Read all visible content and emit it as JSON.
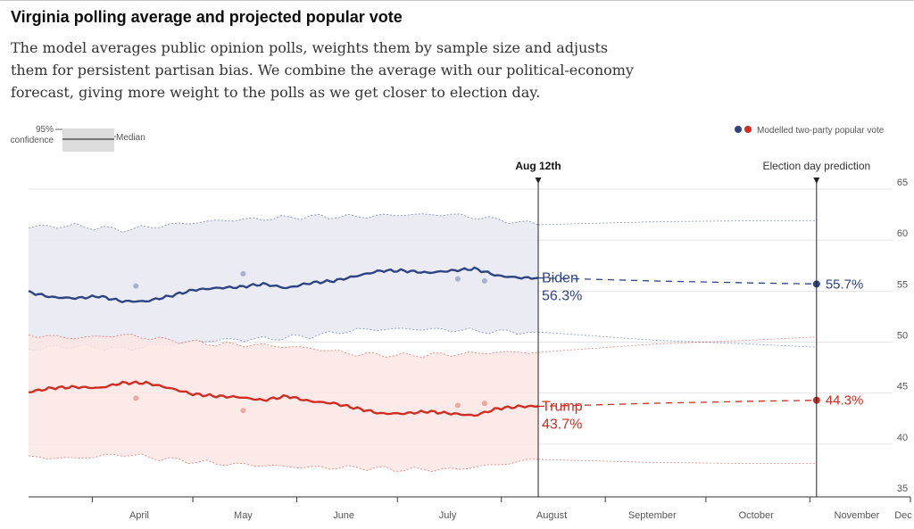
{
  "header": {
    "title": "Virginia polling average and projected popular vote",
    "subtitle": "The model averages public opinion polls, weights them by sample size and adjusts them for persistent partisan bias. We combine the average with our political-economy forecast, giving more weight to the polls as we get closer to election day."
  },
  "legend": {
    "confidence_label_1": "95%",
    "confidence_label_2": "confidence",
    "median_label": "Median",
    "modelled_label": "Modelled two-party popular vote"
  },
  "annotations": {
    "today_label": "Aug 12th",
    "election_label": "Election day prediction"
  },
  "colors": {
    "biden": "#2e4482",
    "trump": "#d02c21",
    "biden_band": "#e9eaf2",
    "trump_band": "#fbe6e4"
  },
  "chart_data": {
    "type": "line",
    "title": "Virginia polling average and projected popular vote",
    "xlabel": "",
    "ylabel": "",
    "ylim": [
      35,
      65
    ],
    "y_ticks": [
      "65",
      "60",
      "55",
      "50",
      "45",
      "40",
      "35"
    ],
    "x_ticks": [
      "April",
      "May",
      "June",
      "July",
      "August",
      "September",
      "October",
      "November",
      "Dec"
    ],
    "x_range": [
      "2020-03-13",
      "2020-12-01"
    ],
    "today": "2020-08-12",
    "election_day": "2020-11-03",
    "grid": true,
    "legend_position": "top-right",
    "series": [
      {
        "name": "Biden",
        "label": "Biden",
        "final_label": "56.3%",
        "election_value_label": "55.7%",
        "election_value": 55.7,
        "median": [
          [
            "2020-03-13",
            54.9
          ],
          [
            "2020-03-20",
            54.4
          ],
          [
            "2020-03-27",
            54.3
          ],
          [
            "2020-04-03",
            54.5
          ],
          [
            "2020-04-10",
            54.0
          ],
          [
            "2020-04-17",
            54.0
          ],
          [
            "2020-04-24",
            54.5
          ],
          [
            "2020-05-01",
            55.1
          ],
          [
            "2020-05-08",
            55.3
          ],
          [
            "2020-05-15",
            55.4
          ],
          [
            "2020-05-22",
            55.7
          ],
          [
            "2020-05-29",
            55.3
          ],
          [
            "2020-06-05",
            55.8
          ],
          [
            "2020-06-12",
            56.0
          ],
          [
            "2020-06-19",
            56.5
          ],
          [
            "2020-06-26",
            57.0
          ],
          [
            "2020-07-03",
            57.0
          ],
          [
            "2020-07-10",
            56.8
          ],
          [
            "2020-07-17",
            57.0
          ],
          [
            "2020-07-24",
            57.2
          ],
          [
            "2020-07-31",
            56.5
          ],
          [
            "2020-08-07",
            56.3
          ],
          [
            "2020-08-12",
            56.3
          ]
        ],
        "upper": [
          [
            "2020-03-13",
            61.3
          ],
          [
            "2020-03-27",
            61.4
          ],
          [
            "2020-04-10",
            61.0
          ],
          [
            "2020-04-24",
            61.5
          ],
          [
            "2020-05-08",
            61.9
          ],
          [
            "2020-05-22",
            62.1
          ],
          [
            "2020-06-05",
            62.3
          ],
          [
            "2020-06-19",
            62.3
          ],
          [
            "2020-07-03",
            62.5
          ],
          [
            "2020-07-17",
            62.5
          ],
          [
            "2020-07-31",
            62.0
          ],
          [
            "2020-08-12",
            61.5
          ]
        ],
        "lower": [
          [
            "2020-03-13",
            49.3
          ],
          [
            "2020-03-27",
            49.6
          ],
          [
            "2020-04-10",
            49.3
          ],
          [
            "2020-04-24",
            49.8
          ],
          [
            "2020-05-08",
            50.2
          ],
          [
            "2020-05-22",
            50.3
          ],
          [
            "2020-06-05",
            50.6
          ],
          [
            "2020-06-19",
            51.2
          ],
          [
            "2020-07-03",
            51.3
          ],
          [
            "2020-07-17",
            51.2
          ],
          [
            "2020-07-31",
            51.0
          ],
          [
            "2020-08-12",
            51.0
          ]
        ],
        "projection": [
          [
            "2020-08-12",
            56.3
          ],
          [
            "2020-09-15",
            56.0
          ],
          [
            "2020-10-15",
            55.8
          ],
          [
            "2020-11-03",
            55.7
          ]
        ],
        "proj_upper": [
          [
            "2020-08-12",
            61.5
          ],
          [
            "2020-09-15",
            61.8
          ],
          [
            "2020-10-15",
            61.9
          ],
          [
            "2020-11-03",
            61.9
          ]
        ],
        "proj_lower": [
          [
            "2020-08-12",
            51.0
          ],
          [
            "2020-09-15",
            50.2
          ],
          [
            "2020-10-15",
            49.8
          ],
          [
            "2020-11-03",
            49.5
          ]
        ],
        "polls": [
          [
            "2020-04-14",
            55.5
          ],
          [
            "2020-05-16",
            56.7
          ],
          [
            "2020-07-19",
            56.2
          ],
          [
            "2020-07-27",
            56.0
          ]
        ]
      },
      {
        "name": "Trump",
        "label": "Trump",
        "final_label": "43.7%",
        "election_value_label": "44.3%",
        "election_value": 44.3,
        "median": [
          [
            "2020-03-13",
            45.1
          ],
          [
            "2020-03-20",
            45.5
          ],
          [
            "2020-03-27",
            45.6
          ],
          [
            "2020-04-03",
            45.5
          ],
          [
            "2020-04-10",
            46.0
          ],
          [
            "2020-04-17",
            46.0
          ],
          [
            "2020-04-24",
            45.5
          ],
          [
            "2020-05-01",
            44.9
          ],
          [
            "2020-05-08",
            44.7
          ],
          [
            "2020-05-15",
            44.6
          ],
          [
            "2020-05-22",
            44.3
          ],
          [
            "2020-05-29",
            44.7
          ],
          [
            "2020-06-05",
            44.2
          ],
          [
            "2020-06-12",
            44.0
          ],
          [
            "2020-06-19",
            43.5
          ],
          [
            "2020-06-26",
            43.0
          ],
          [
            "2020-07-03",
            43.0
          ],
          [
            "2020-07-10",
            43.2
          ],
          [
            "2020-07-17",
            43.0
          ],
          [
            "2020-07-24",
            42.8
          ],
          [
            "2020-07-31",
            43.5
          ],
          [
            "2020-08-07",
            43.7
          ],
          [
            "2020-08-12",
            43.7
          ]
        ],
        "upper": [
          [
            "2020-03-13",
            50.7
          ],
          [
            "2020-03-27",
            50.4
          ],
          [
            "2020-04-10",
            50.7
          ],
          [
            "2020-04-24",
            50.2
          ],
          [
            "2020-05-08",
            49.8
          ],
          [
            "2020-05-22",
            49.7
          ],
          [
            "2020-06-05",
            49.4
          ],
          [
            "2020-06-19",
            48.8
          ],
          [
            "2020-07-03",
            48.7
          ],
          [
            "2020-07-17",
            48.8
          ],
          [
            "2020-07-31",
            49.0
          ],
          [
            "2020-08-12",
            49.0
          ]
        ],
        "lower": [
          [
            "2020-03-13",
            38.7
          ],
          [
            "2020-03-27",
            38.6
          ],
          [
            "2020-04-10",
            39.0
          ],
          [
            "2020-04-24",
            38.5
          ],
          [
            "2020-05-08",
            38.1
          ],
          [
            "2020-05-22",
            37.9
          ],
          [
            "2020-06-05",
            37.7
          ],
          [
            "2020-06-19",
            37.7
          ],
          [
            "2020-07-03",
            37.5
          ],
          [
            "2020-07-17",
            37.5
          ],
          [
            "2020-07-31",
            38.0
          ],
          [
            "2020-08-12",
            38.5
          ]
        ],
        "projection": [
          [
            "2020-08-12",
            43.7
          ],
          [
            "2020-09-15",
            44.0
          ],
          [
            "2020-10-15",
            44.2
          ],
          [
            "2020-11-03",
            44.3
          ]
        ],
        "proj_upper": [
          [
            "2020-08-12",
            49.0
          ],
          [
            "2020-09-15",
            49.8
          ],
          [
            "2020-10-15",
            50.2
          ],
          [
            "2020-11-03",
            50.5
          ]
        ],
        "proj_lower": [
          [
            "2020-08-12",
            38.5
          ],
          [
            "2020-09-15",
            38.2
          ],
          [
            "2020-10-15",
            38.1
          ],
          [
            "2020-11-03",
            38.1
          ]
        ],
        "polls": [
          [
            "2020-04-14",
            44.5
          ],
          [
            "2020-05-16",
            43.3
          ],
          [
            "2020-07-19",
            43.8
          ],
          [
            "2020-07-27",
            44.0
          ]
        ]
      }
    ]
  }
}
